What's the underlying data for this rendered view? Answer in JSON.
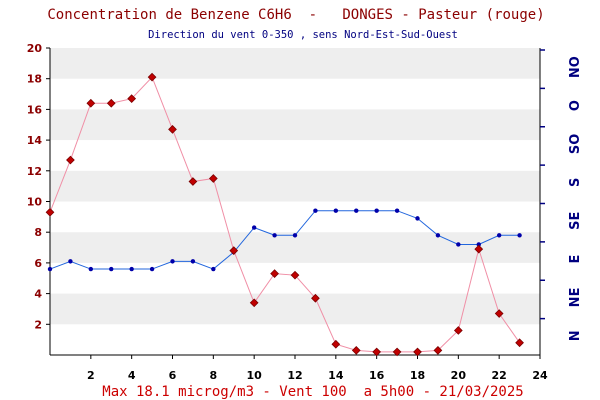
{
  "title": "Concentration de Benzene C6H6  -   DONGES - Pasteur (rouge)",
  "subtitle": "Direction du vent 0-350 , sens Nord-Est-Sud-Ouest",
  "footer": "Max 18.1 microg/m3 - Vent 100  a 5h00 - 21/03/2025",
  "colors": {
    "benzene_line": "#f08fa6",
    "benzene_marker": "#c00000",
    "wind_line": "#2266dd",
    "wind_marker": "#0000aa",
    "band": "#eeeeee",
    "axis": "#000000"
  },
  "chart_data": {
    "type": "line",
    "x": [
      0,
      1,
      2,
      3,
      4,
      5,
      6,
      7,
      8,
      9,
      10,
      11,
      12,
      13,
      14,
      15,
      16,
      17,
      18,
      19,
      20,
      21,
      22,
      23
    ],
    "xlim": [
      0,
      24
    ],
    "x_ticks": [
      "2",
      "4",
      "6",
      "8",
      "10",
      "12",
      "14",
      "16",
      "18",
      "20",
      "22",
      "24"
    ],
    "ylim": [
      0,
      20
    ],
    "y_ticks": [
      "2",
      "4",
      "6",
      "8",
      "10",
      "12",
      "14",
      "16",
      "18",
      "20"
    ],
    "right_axis_labels": [
      "N",
      "NE",
      "E",
      "SE",
      "S",
      "SO",
      "O",
      "NO"
    ],
    "grid": "horizontal bands",
    "series": [
      {
        "axis": "left",
        "values": [
          9.3,
          12.7,
          16.4,
          16.4,
          16.7,
          18.1,
          14.7,
          11.3,
          11.5,
          6.8,
          3.4,
          5.3,
          5.2,
          3.7,
          0.7,
          0.3,
          0.2,
          0.2,
          0.2,
          0.3,
          1.6,
          6.9,
          2.7,
          0.8
        ]
      },
      {
        "axis": "right",
        "values": [
          5.6,
          6.1,
          5.6,
          5.6,
          5.6,
          5.6,
          6.1,
          6.1,
          5.6,
          6.7,
          8.3,
          7.8,
          7.8,
          9.4,
          9.4,
          9.4,
          9.4,
          9.4,
          8.9,
          7.8,
          7.2,
          7.2,
          7.8,
          7.8
        ]
      }
    ]
  }
}
